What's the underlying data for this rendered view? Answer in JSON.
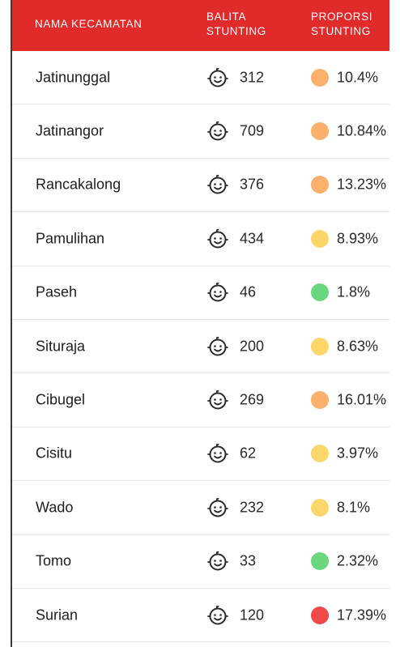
{
  "header": {
    "col1": "NAMA KECAMATAN",
    "col2_line1": "BALITA",
    "col2_line2": "STUNTING",
    "col3_line1": "PROPORSI",
    "col3_line2": "STUNTING"
  },
  "colors": {
    "header_bg": "#e12a2a",
    "orange": "#fbb06b",
    "yellow": "#fdd66a",
    "green": "#6ad67e",
    "red": "#ef4b4b"
  },
  "icon": "baby-face-icon",
  "rows": [
    {
      "name": "Jatinunggal",
      "count": "312",
      "pct": "10.4%",
      "level": "orange"
    },
    {
      "name": "Jatinangor",
      "count": "709",
      "pct": "10.84%",
      "level": "orange"
    },
    {
      "name": "Rancakalong",
      "count": "376",
      "pct": "13.23%",
      "level": "orange"
    },
    {
      "name": "Pamulihan",
      "count": "434",
      "pct": "8.93%",
      "level": "yellow"
    },
    {
      "name": "Paseh",
      "count": "46",
      "pct": "1.8%",
      "level": "green"
    },
    {
      "name": "Situraja",
      "count": "200",
      "pct": "8.63%",
      "level": "yellow"
    },
    {
      "name": "Cibugel",
      "count": "269",
      "pct": "16.01%",
      "level": "orange"
    },
    {
      "name": "Cisitu",
      "count": "62",
      "pct": "3.97%",
      "level": "yellow"
    },
    {
      "name": "Wado",
      "count": "232",
      "pct": "8.1%",
      "level": "yellow"
    },
    {
      "name": "Tomo",
      "count": "33",
      "pct": "2.32%",
      "level": "green"
    },
    {
      "name": "Surian",
      "count": "120",
      "pct": "17.39%",
      "level": "red"
    }
  ]
}
